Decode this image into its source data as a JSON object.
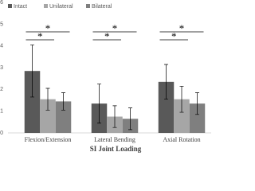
{
  "chart_data": {
    "type": "bar",
    "x_label": "SI Joint Loading",
    "categories": [
      "Flexion/Extension",
      "Lateral Bending",
      "Axial Rotation"
    ],
    "series": [
      {
        "name": "Intact",
        "color": "#595959",
        "values": [
          2.85,
          1.35,
          2.35
        ],
        "errors": [
          1.2,
          0.9,
          0.8
        ]
      },
      {
        "name": "Unilateral",
        "color": "#a6a6a6",
        "values": [
          1.55,
          0.75,
          1.55
        ],
        "errors": [
          0.5,
          0.5,
          0.6
        ]
      },
      {
        "name": "Bilateral",
        "color": "#7f7f7f",
        "values": [
          1.45,
          0.65,
          1.35
        ],
        "errors": [
          0.4,
          0.5,
          0.5
        ]
      }
    ],
    "ylim": [
      0,
      6
    ],
    "yticks": [
      0,
      1,
      2,
      3,
      4,
      5,
      6
    ],
    "legend": "top-left",
    "annotations": [
      "*",
      "*",
      "*",
      "*",
      "*",
      "*"
    ]
  }
}
